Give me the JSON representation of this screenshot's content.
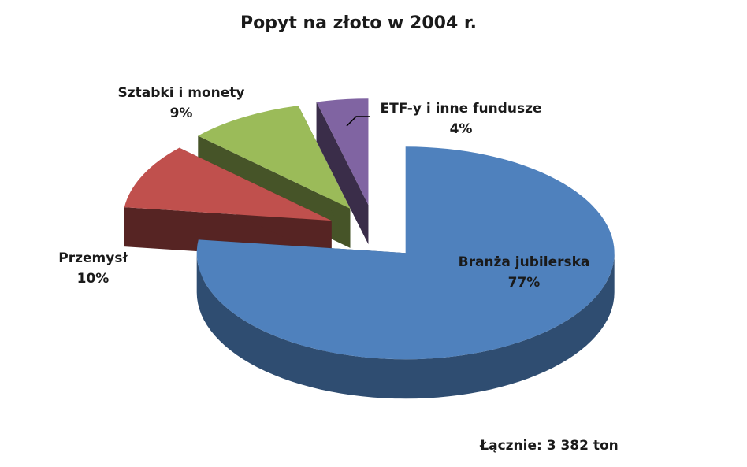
{
  "chart_data": {
    "type": "pie",
    "title": "Popyt na złoto w 2004 r.",
    "categories": [
      "Branża jubilerska",
      "Przemysł",
      "Sztabki i monety",
      "ETF-y i inne fundusze"
    ],
    "values": [
      77,
      10,
      9,
      4
    ],
    "value_labels": [
      "77%",
      "10%",
      "9%",
      "4%"
    ],
    "colors": [
      "#4f81bd",
      "#c0504d",
      "#9bbb59",
      "#8064a2"
    ],
    "annotation": "Łącznie: 3 382 ton"
  }
}
